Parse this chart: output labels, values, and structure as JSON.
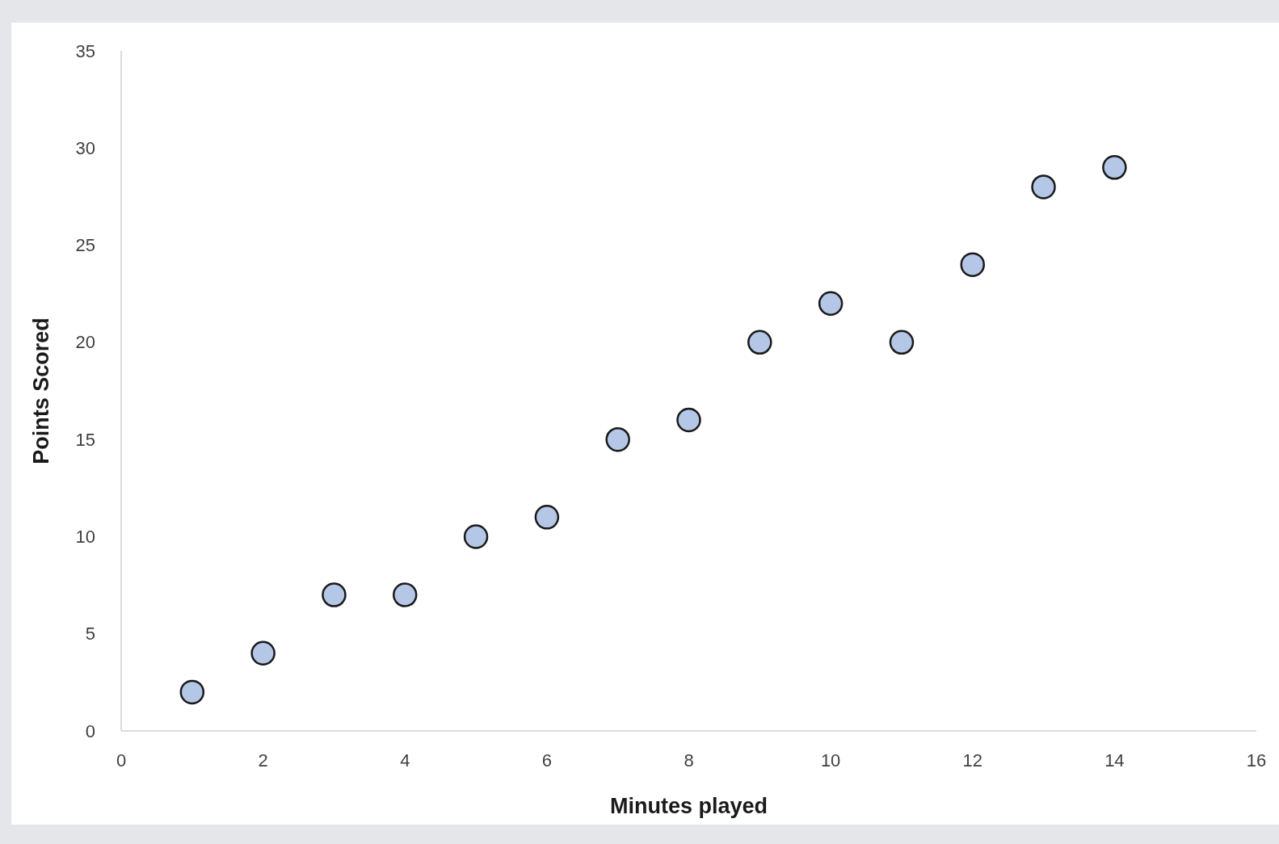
{
  "chart_data": {
    "type": "scatter",
    "xlabel": "Minutes played",
    "ylabel": "Points Scored",
    "x": [
      1,
      2,
      3,
      4,
      5,
      6,
      7,
      8,
      9,
      10,
      11,
      12,
      13,
      14
    ],
    "values": [
      2,
      4,
      7,
      7,
      10,
      11,
      15,
      16,
      20,
      22,
      20,
      24,
      28,
      29
    ],
    "color": "#b4c7e7",
    "marker": "circle",
    "xlim": [
      0,
      16
    ],
    "xticks": [
      0,
      2,
      4,
      6,
      8,
      10,
      12,
      14,
      16
    ],
    "ylim": [
      0,
      35
    ],
    "yticks": [
      0,
      5,
      10,
      15,
      20,
      25,
      30,
      35
    ]
  }
}
